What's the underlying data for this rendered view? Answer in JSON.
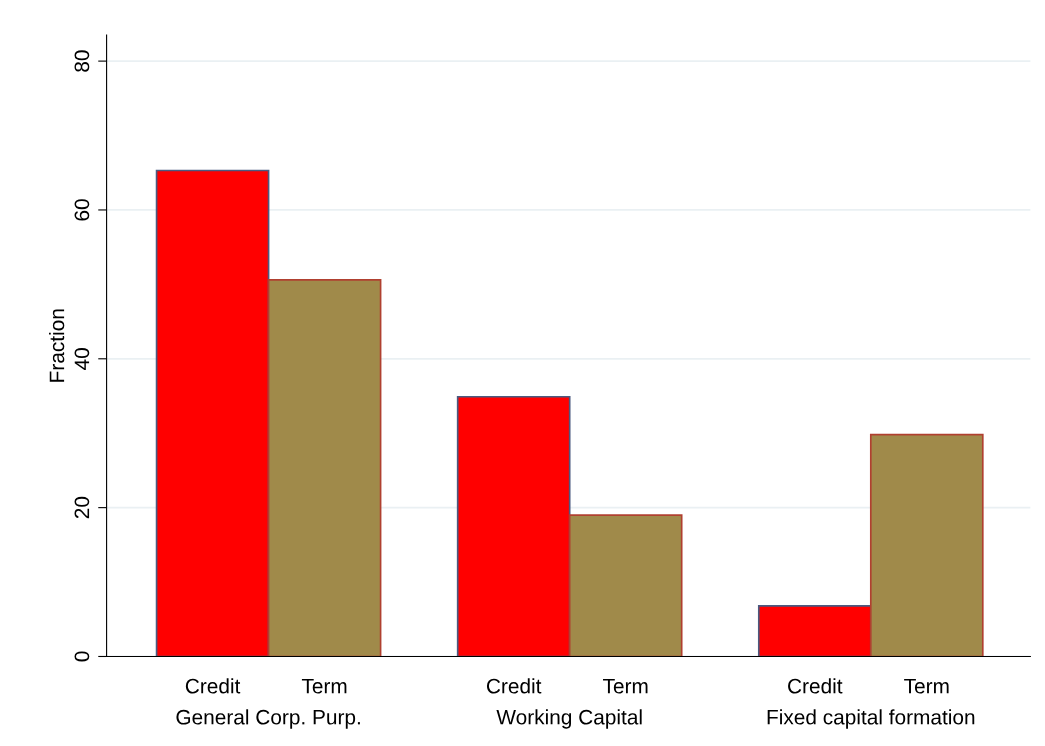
{
  "chart_data": {
    "type": "bar",
    "ylabel": "Fraction",
    "categories": [
      "General Corp. Purp.",
      "Working Capital",
      "Fixed capital formation"
    ],
    "series": [
      {
        "name": "Credit",
        "color": "#ff0000",
        "values": [
          65.3,
          34.9,
          6.8
        ]
      },
      {
        "name": "Term",
        "color": "#a08a4a",
        "values": [
          50.6,
          19.0,
          29.8
        ]
      }
    ],
    "ylim": [
      0,
      83.5
    ],
    "yticks": [
      0,
      20,
      40,
      60,
      80
    ],
    "grid": "y",
    "legend": false
  }
}
